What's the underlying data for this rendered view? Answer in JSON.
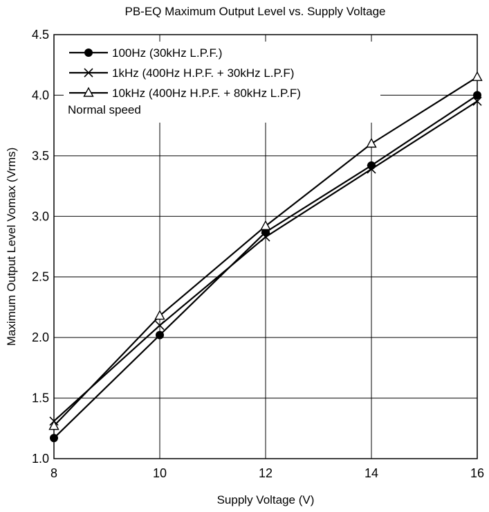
{
  "chart_data": {
    "type": "line",
    "title": "PB-EQ Maximum Output Level vs. Supply Voltage",
    "xlabel": "Supply Voltage  (V)",
    "ylabel": "Maximum Output Level  Vomax  (Vrms)",
    "xlim": [
      8,
      16
    ],
    "ylim": [
      1.0,
      4.5
    ],
    "xticks": [
      8,
      10,
      12,
      14,
      16
    ],
    "xtick_labels": [
      "8",
      "10",
      "12",
      "14",
      "16"
    ],
    "yticks": [
      1.0,
      1.5,
      2.0,
      2.5,
      3.0,
      3.5,
      4.0,
      4.5
    ],
    "ytick_labels": [
      "1.0",
      "1.5",
      "2.0",
      "2.5",
      "3.0",
      "3.5",
      "4.0",
      "4.5"
    ],
    "grid": true,
    "legend_position": "top-left",
    "legend_note": "Normal speed",
    "x": [
      8,
      10,
      12,
      14,
      16
    ],
    "series": [
      {
        "name": "100Hz (30kHz L.P.F.)",
        "marker": "filled-circle",
        "color": "#000000",
        "values": [
          1.17,
          2.02,
          2.87,
          3.42,
          4.0
        ]
      },
      {
        "name": "1kHz (400Hz H.P.F. + 30kHz L.P.F)",
        "marker": "cross",
        "color": "#000000",
        "values": [
          1.31,
          2.1,
          2.83,
          3.39,
          3.95
        ]
      },
      {
        "name": "10kHz (400Hz H.P.F. + 80kHz L.P.F)",
        "marker": "open-triangle",
        "color": "#000000",
        "values": [
          1.27,
          2.18,
          2.92,
          3.6,
          4.15
        ]
      }
    ]
  }
}
